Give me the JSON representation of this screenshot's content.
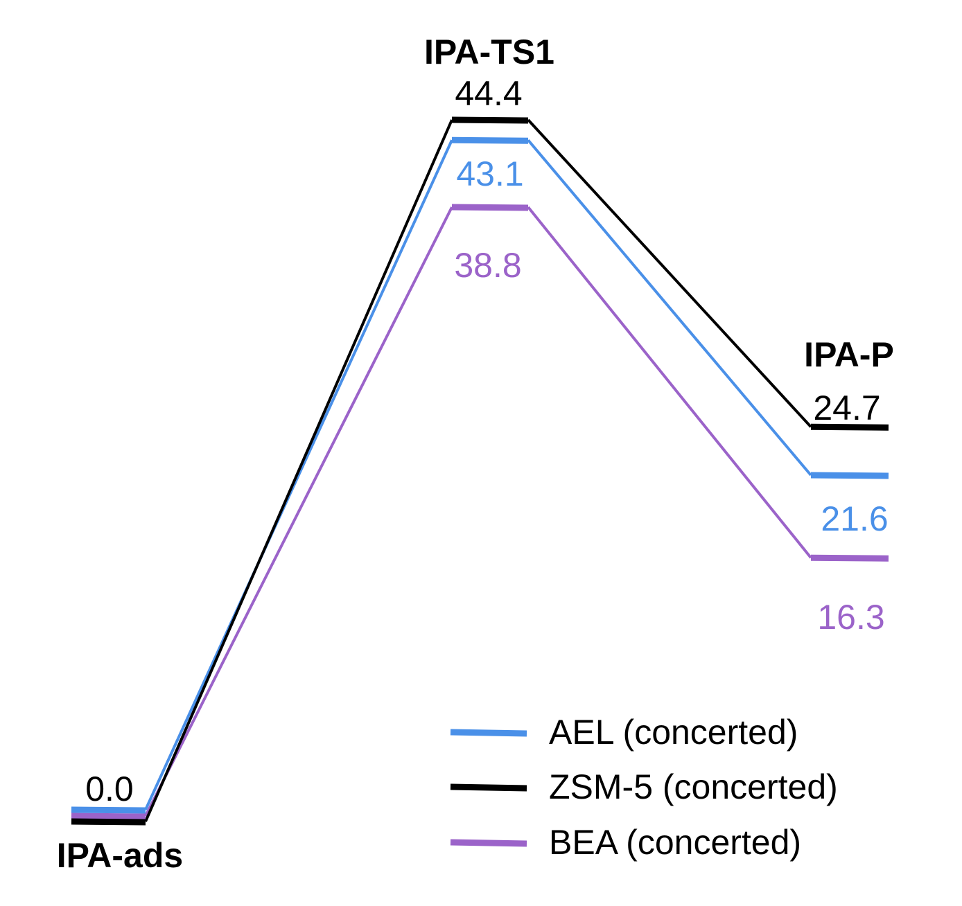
{
  "chart_data": {
    "type": "line",
    "title": "",
    "xlabel": "",
    "ylabel": "",
    "states": [
      "IPA-ads",
      "IPA-TS1",
      "IPA-P"
    ],
    "series": [
      {
        "name": "AEL (concerted)",
        "color": "#4a90e8",
        "values": [
          0.0,
          43.1,
          21.6
        ]
      },
      {
        "name": "ZSM-5 (concerted)",
        "color": "#000000",
        "values": [
          0.0,
          44.4,
          24.7
        ]
      },
      {
        "name": "BEA (concerted)",
        "color": "#9b63c9",
        "values": [
          0.0,
          38.8,
          16.3
        ]
      }
    ],
    "value_labels": {
      "ads": "0.0",
      "ts1": {
        "zsm5": "44.4",
        "ael": "43.1",
        "bea": "38.8"
      },
      "p": {
        "zsm5": "24.7",
        "ael": "21.6",
        "bea": "16.3"
      }
    },
    "legend": {
      "position": "bottom-right",
      "items": [
        {
          "label": "AEL (concerted)",
          "color": "#4a90e8"
        },
        {
          "label": "ZSM-5 (concerted)",
          "color": "#000000"
        },
        {
          "label": "BEA (concerted)",
          "color": "#9b63c9"
        }
      ]
    }
  }
}
